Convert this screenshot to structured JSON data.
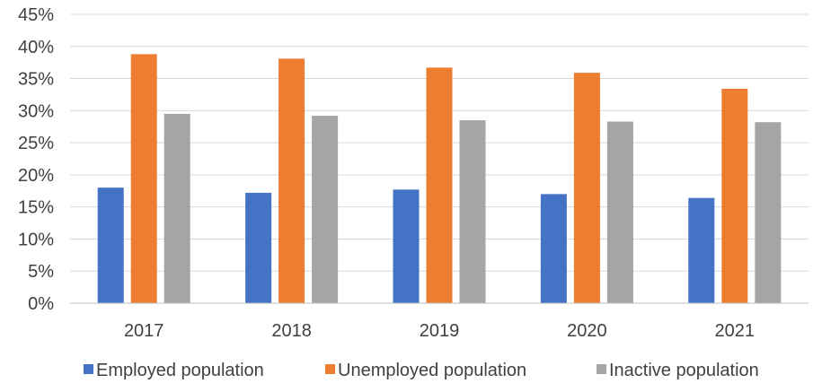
{
  "chart_data": {
    "type": "bar",
    "categories": [
      "2017",
      "2018",
      "2019",
      "2020",
      "2021"
    ],
    "series": [
      {
        "name": "Employed population",
        "color": "#4472C4",
        "values": [
          18.0,
          17.2,
          17.7,
          17.0,
          16.4
        ]
      },
      {
        "name": "Unemployed population",
        "color": "#ED7D31",
        "values": [
          38.8,
          38.1,
          36.7,
          35.9,
          33.4
        ]
      },
      {
        "name": "Inactive population",
        "color": "#A5A5A5",
        "values": [
          29.5,
          29.2,
          28.5,
          28.3,
          28.2
        ]
      }
    ],
    "ylim": [
      0,
      45
    ],
    "yticks": [
      "0%",
      "5%",
      "10%",
      "15%",
      "20%",
      "25%",
      "30%",
      "35%",
      "40%",
      "45%"
    ],
    "ytick_values": [
      0,
      5,
      10,
      15,
      20,
      25,
      30,
      35,
      40,
      45
    ],
    "grid": true,
    "legend_position": "bottom"
  }
}
